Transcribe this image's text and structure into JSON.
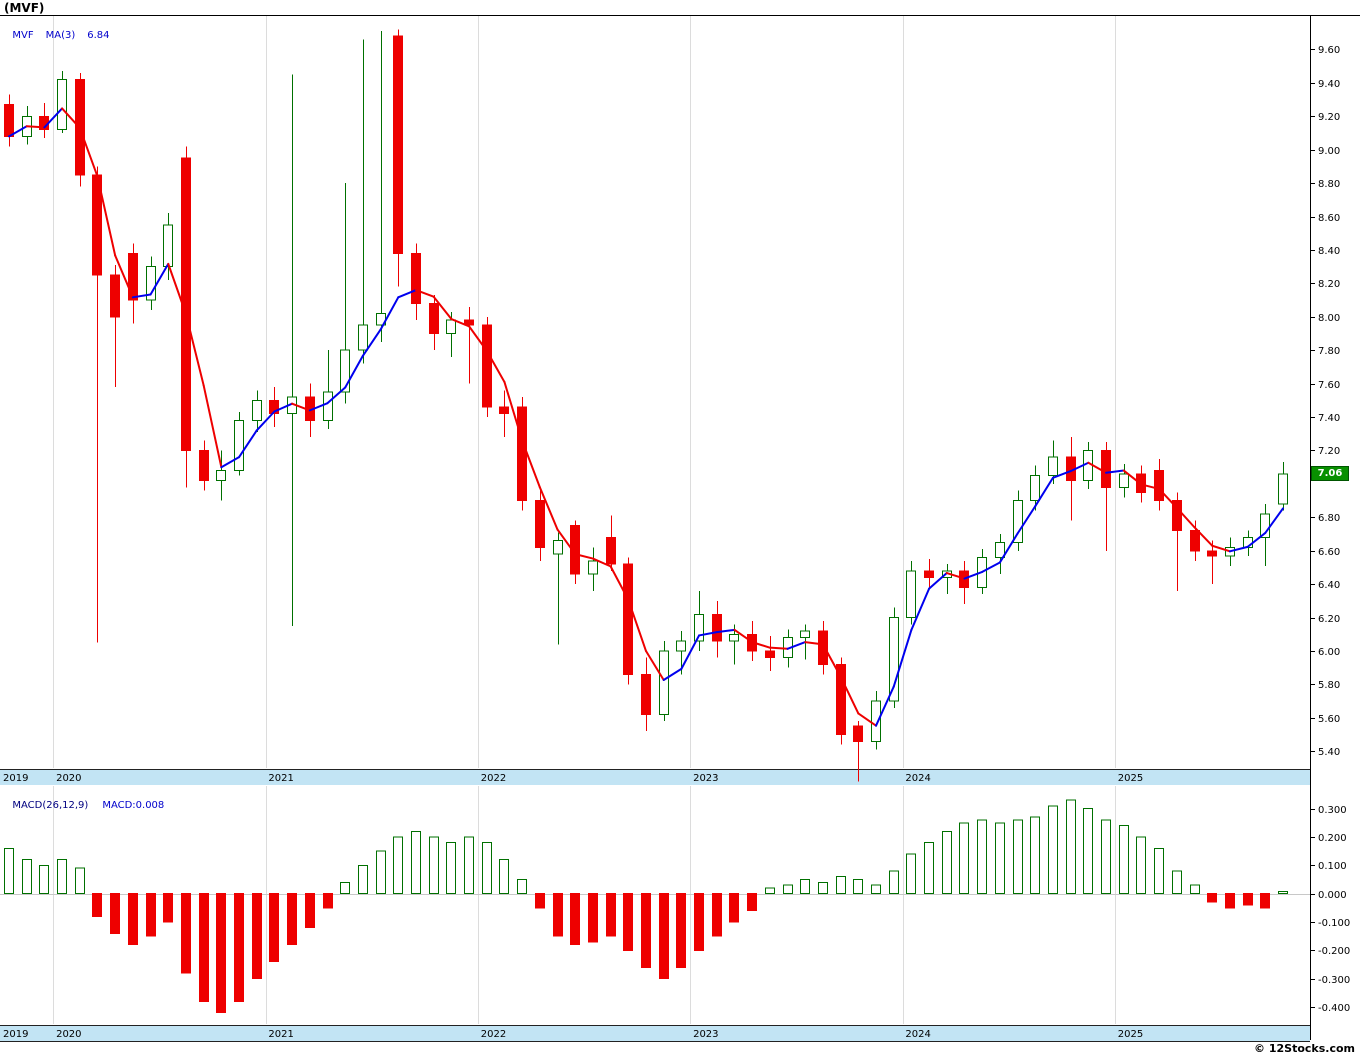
{
  "window": {
    "title": "(MVF)"
  },
  "main_legend": {
    "symbol": "MVF",
    "ma_label": "MA(3)",
    "ma_value": "6.84"
  },
  "macd_legend": {
    "label": "MACD(26,12,9)",
    "value": "MACD:0.008"
  },
  "last_price": "7.06",
  "copyright": "© 12Stocks.com",
  "colors": {
    "up": "#007000",
    "down": "#ee0000",
    "ma_up": "#0000ee",
    "ma_down": "#ee0000",
    "band": "#c2e4f4",
    "grid": "#dcdcdc",
    "last_price_bg": "#089000",
    "legend_blue": "#0000cc",
    "legend_navy": "#000080"
  },
  "chart_data": [
    {
      "type": "candlestick",
      "title": "MVF monthly price with MA(3)",
      "x_unit": "month",
      "x_year_labels": [
        "2019",
        "2020",
        "2021",
        "2022",
        "2023",
        "2024",
        "2025"
      ],
      "ylim": [
        5.3,
        9.8
      ],
      "y_ticks": [
        9.6,
        9.4,
        9.2,
        9.0,
        8.8,
        8.6,
        8.4,
        8.2,
        8.0,
        7.8,
        7.6,
        7.4,
        7.2,
        6.8,
        6.6,
        6.4,
        6.2,
        6.0,
        5.8,
        5.6,
        5.4
      ],
      "ma_period": 3,
      "dates": [
        "2019-10",
        "2019-11",
        "2019-12",
        "2020-01",
        "2020-02",
        "2020-03",
        "2020-04",
        "2020-05",
        "2020-06",
        "2020-07",
        "2020-08",
        "2020-09",
        "2020-10",
        "2020-11",
        "2020-12",
        "2021-01",
        "2021-02",
        "2021-03",
        "2021-04",
        "2021-05",
        "2021-06",
        "2021-07",
        "2021-08",
        "2021-09",
        "2021-10",
        "2021-11",
        "2021-12",
        "2022-01",
        "2022-02",
        "2022-03",
        "2022-04",
        "2022-05",
        "2022-06",
        "2022-07",
        "2022-08",
        "2022-09",
        "2022-10",
        "2022-11",
        "2022-12",
        "2023-01",
        "2023-02",
        "2023-03",
        "2023-04",
        "2023-05",
        "2023-06",
        "2023-07",
        "2023-08",
        "2023-09",
        "2023-10",
        "2023-11",
        "2023-12",
        "2024-01",
        "2024-02",
        "2024-03",
        "2024-04",
        "2024-05",
        "2024-06",
        "2024-07",
        "2024-08",
        "2024-09",
        "2024-10",
        "2024-11",
        "2024-12",
        "2025-01",
        "2025-02",
        "2025-03",
        "2025-04",
        "2025-05",
        "2025-06",
        "2025-07",
        "2025-08",
        "2025-09",
        "2025-10"
      ],
      "open": [
        9.27,
        9.08,
        9.2,
        9.12,
        9.42,
        8.85,
        8.25,
        8.38,
        8.1,
        8.3,
        8.95,
        7.2,
        7.02,
        7.08,
        7.38,
        7.5,
        7.42,
        7.52,
        7.38,
        7.55,
        7.8,
        7.95,
        9.68,
        8.38,
        8.08,
        7.9,
        7.98,
        7.95,
        7.46,
        7.46,
        6.9,
        6.58,
        6.75,
        6.46,
        6.68,
        6.52,
        5.86,
        5.62,
        6.0,
        6.06,
        6.22,
        6.06,
        6.1,
        6.0,
        5.96,
        6.08,
        6.12,
        5.92,
        5.55,
        5.46,
        5.7,
        6.2,
        6.48,
        6.44,
        6.48,
        6.38,
        6.56,
        6.65,
        6.9,
        7.05,
        7.16,
        7.02,
        7.2,
        6.98,
        7.06,
        7.08,
        6.9,
        6.72,
        6.6,
        6.57,
        6.62,
        6.68,
        6.88
      ],
      "high": [
        9.33,
        9.26,
        9.28,
        9.47,
        9.46,
        8.9,
        8.31,
        8.44,
        8.36,
        8.62,
        9.02,
        7.26,
        7.2,
        7.43,
        7.56,
        7.58,
        9.45,
        7.6,
        7.8,
        8.8,
        9.66,
        9.71,
        9.72,
        8.44,
        8.13,
        8.03,
        8.06,
        8.0,
        7.56,
        7.52,
        6.96,
        6.71,
        6.78,
        6.62,
        6.81,
        6.56,
        5.96,
        6.06,
        6.12,
        6.36,
        6.3,
        6.16,
        6.18,
        6.09,
        6.13,
        6.16,
        6.18,
        5.96,
        5.58,
        5.76,
        6.26,
        6.54,
        6.55,
        6.52,
        6.54,
        6.61,
        6.7,
        6.96,
        7.11,
        7.26,
        7.28,
        7.25,
        7.25,
        7.12,
        7.11,
        7.15,
        6.95,
        6.78,
        6.66,
        6.68,
        6.72,
        6.88,
        7.13
      ],
      "low": [
        9.02,
        9.03,
        9.07,
        9.1,
        8.78,
        6.05,
        7.58,
        7.96,
        8.04,
        8.22,
        6.98,
        6.96,
        6.9,
        7.05,
        7.31,
        7.34,
        6.15,
        7.28,
        7.33,
        7.48,
        7.72,
        7.85,
        8.18,
        7.98,
        7.8,
        7.76,
        7.6,
        7.4,
        7.28,
        6.84,
        6.54,
        6.04,
        6.4,
        6.36,
        6.48,
        5.8,
        5.52,
        5.58,
        5.86,
        6.0,
        5.96,
        5.92,
        5.94,
        5.88,
        5.9,
        5.95,
        5.86,
        5.44,
        5.22,
        5.41,
        5.66,
        6.16,
        6.37,
        6.34,
        6.28,
        6.34,
        6.46,
        6.6,
        6.84,
        7.0,
        6.78,
        6.97,
        6.6,
        6.92,
        6.89,
        6.84,
        6.36,
        6.54,
        6.4,
        6.51,
        6.57,
        6.51,
        6.84
      ],
      "close": [
        9.08,
        9.2,
        9.12,
        9.42,
        8.85,
        8.25,
        8.0,
        8.1,
        8.3,
        8.55,
        7.2,
        7.02,
        7.08,
        7.38,
        7.5,
        7.42,
        7.52,
        7.38,
        7.55,
        7.8,
        7.95,
        8.02,
        8.38,
        8.08,
        7.9,
        7.98,
        7.95,
        7.46,
        7.42,
        6.9,
        6.62,
        6.66,
        6.46,
        6.54,
        6.52,
        5.86,
        5.62,
        6.0,
        6.06,
        6.22,
        6.06,
        6.1,
        6.0,
        5.96,
        6.08,
        6.12,
        5.92,
        5.5,
        5.46,
        5.7,
        6.2,
        6.48,
        6.44,
        6.48,
        6.38,
        6.56,
        6.65,
        6.9,
        7.05,
        7.16,
        7.02,
        7.2,
        6.98,
        7.06,
        6.95,
        6.9,
        6.72,
        6.6,
        6.57,
        6.62,
        6.68,
        6.82,
        7.06
      ]
    },
    {
      "type": "bar",
      "title": "MACD(26,12,9) histogram",
      "ylim": [
        -0.46,
        0.38
      ],
      "y_ticks": [
        0.3,
        0.2,
        0.1,
        0.0,
        -0.1,
        -0.2,
        -0.3,
        -0.4
      ],
      "values": [
        0.16,
        0.12,
        0.1,
        0.12,
        0.09,
        -0.08,
        -0.14,
        -0.18,
        -0.15,
        -0.1,
        -0.28,
        -0.38,
        -0.42,
        -0.38,
        -0.3,
        -0.24,
        -0.18,
        -0.12,
        -0.05,
        0.04,
        0.1,
        0.15,
        0.2,
        0.22,
        0.2,
        0.18,
        0.2,
        0.18,
        0.12,
        0.05,
        -0.05,
        -0.15,
        -0.18,
        -0.17,
        -0.15,
        -0.2,
        -0.26,
        -0.3,
        -0.26,
        -0.2,
        -0.15,
        -0.1,
        -0.06,
        0.02,
        0.03,
        0.05,
        0.04,
        0.06,
        0.05,
        0.03,
        0.08,
        0.14,
        0.18,
        0.22,
        0.25,
        0.26,
        0.25,
        0.26,
        0.27,
        0.31,
        0.33,
        0.3,
        0.26,
        0.24,
        0.2,
        0.16,
        0.08,
        0.03,
        -0.03,
        -0.05,
        -0.04,
        -0.05,
        0.008
      ]
    }
  ]
}
